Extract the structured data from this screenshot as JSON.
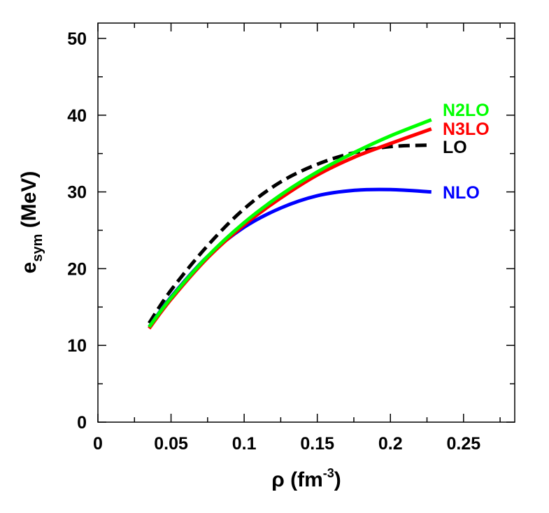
{
  "chart_data": {
    "type": "line",
    "xlabel": {
      "main": "ρ (fm",
      "sup": "-3",
      "end": ")"
    },
    "ylabel": {
      "main": "e",
      "sub": "sym",
      "end": " (MeV)"
    },
    "xlim": [
      0,
      0.285
    ],
    "ylim": [
      0,
      52
    ],
    "x_ticks": [
      0,
      0.05,
      0.1,
      0.15,
      0.2,
      0.25
    ],
    "x_tick_labels": [
      "0",
      "0.05",
      "0.1",
      "0.15",
      "0.2",
      "0.25"
    ],
    "x_minor_ticks": [
      0.025,
      0.075,
      0.125,
      0.175,
      0.225,
      0.275
    ],
    "y_ticks": [
      0,
      10,
      20,
      30,
      40,
      50
    ],
    "y_tick_labels": [
      "0",
      "10",
      "20",
      "30",
      "40",
      "50"
    ],
    "y_minor_ticks": [
      5,
      15,
      25,
      35,
      45
    ],
    "grid": false,
    "legend": "inline-right",
    "series": [
      {
        "name": "LO",
        "color": "#000000",
        "dashed": true,
        "x": [
          0.035,
          0.05,
          0.075,
          0.1,
          0.125,
          0.15,
          0.175,
          0.2,
          0.228
        ],
        "y": [
          12.9,
          17.2,
          23.0,
          27.8,
          31.3,
          33.6,
          35.1,
          35.9,
          36.1
        ]
      },
      {
        "name": "NLO",
        "color": "#0000ff",
        "dashed": false,
        "x": [
          0.035,
          0.05,
          0.075,
          0.1,
          0.125,
          0.15,
          0.175,
          0.2,
          0.228
        ],
        "y": [
          12.4,
          16.3,
          21.6,
          25.4,
          27.9,
          29.5,
          30.2,
          30.3,
          30.0
        ]
      },
      {
        "name": "N2LO",
        "color": "#00ff00",
        "dashed": false,
        "x": [
          0.035,
          0.05,
          0.075,
          0.1,
          0.125,
          0.15,
          0.175,
          0.2,
          0.228
        ],
        "y": [
          12.4,
          16.2,
          21.6,
          26.0,
          29.6,
          32.6,
          35.1,
          37.3,
          39.4
        ]
      },
      {
        "name": "N3LO",
        "color": "#ff0000",
        "dashed": false,
        "x": [
          0.035,
          0.05,
          0.075,
          0.1,
          0.125,
          0.15,
          0.175,
          0.2,
          0.228
        ],
        "y": [
          12.2,
          16.0,
          21.4,
          25.7,
          29.2,
          32.2,
          34.5,
          36.3,
          38.2
        ]
      }
    ]
  }
}
